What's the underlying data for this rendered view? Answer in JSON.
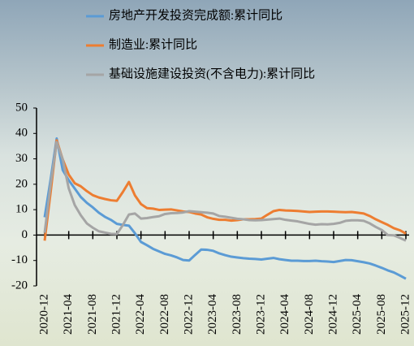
{
  "chart_data": {
    "type": "line",
    "categories": [
      "2020-12",
      null,
      null,
      null,
      "2021-04",
      null,
      null,
      null,
      "2021-08",
      null,
      null,
      null,
      "2021-12",
      null,
      null,
      null,
      "2022-04",
      null,
      null,
      null,
      "2022-08",
      null,
      null,
      null,
      "2022-12",
      null,
      null,
      null,
      "2023-04",
      null,
      null,
      null,
      "2023-08",
      null,
      null,
      null,
      "2023-12",
      null,
      null,
      null,
      "2024-04",
      null,
      null,
      null,
      "2024-08",
      null,
      null,
      null,
      "2024-12",
      null,
      null,
      null,
      "2025-04",
      null,
      null,
      null,
      "2025-08",
      null,
      null,
      null,
      "2025-12"
    ],
    "series": [
      {
        "name": "房地产开发投资完成额:累计同比",
        "color": "#5b9bd5",
        "values": [
          7,
          22,
          38,
          25.6,
          21.6,
          18.3,
          15,
          12.7,
          10.9,
          8.8,
          7.2,
          6,
          4.4,
          4,
          3.7,
          0.7,
          -2.7,
          -4,
          -5.4,
          -6.4,
          -7.4,
          -8,
          -8.8,
          -9.8,
          -10,
          -7.8,
          -5.7,
          -5.8,
          -6.2,
          -7.2,
          -7.9,
          -8.5,
          -8.8,
          -9.1,
          -9.3,
          -9.4,
          -9.6,
          -9.3,
          -9,
          -9.5,
          -9.8,
          -10.1,
          -10.1,
          -10.2,
          -10.2,
          -10.1,
          -10.3,
          -10.4,
          -10.6,
          -10.2,
          -9.8,
          -9.9,
          -10.3,
          -10.7,
          -11.2,
          -12,
          -12.9,
          -13.9,
          -14.7,
          -15.9,
          -17.2
        ]
      },
      {
        "name": "制造业:累计同比",
        "color": "#ed7d31",
        "values": [
          -2.2,
          17,
          37.3,
          29.8,
          23.8,
          20.4,
          19.2,
          17.3,
          15.7,
          14.8,
          14.2,
          13.7,
          13.5,
          17,
          20.9,
          15.6,
          12.2,
          10.6,
          10.4,
          9.9,
          10,
          10.1,
          9.7,
          9.3,
          9.1,
          8.5,
          8.1,
          7,
          6.4,
          6,
          6,
          5.7,
          5.9,
          6.2,
          6.2,
          6.3,
          6.5,
          8,
          9.4,
          9.9,
          9.7,
          9.6,
          9.5,
          9.3,
          9.1,
          9.2,
          9.3,
          9.3,
          9.2,
          9.1,
          9,
          9.1,
          8.8,
          8.5,
          7.5,
          6.2,
          5.1,
          4,
          2.7,
          1.9,
          0.6
        ]
      },
      {
        "name": "基础设施建设投资(不含电力):累计同比",
        "color": "#a5a5a5",
        "values": [
          0.9,
          20,
          36.6,
          29.7,
          18.4,
          11.8,
          7.8,
          4.6,
          2.9,
          1.5,
          1,
          0.5,
          0.4,
          4,
          8.1,
          8.5,
          6.5,
          6.7,
          7.1,
          7.4,
          8.3,
          8.6,
          8.7,
          8.9,
          9.4,
          9.2,
          9,
          8.8,
          8.5,
          7.5,
          7.2,
          6.8,
          6.4,
          6.2,
          5.9,
          5.8,
          5.9,
          6.1,
          6.3,
          6.5,
          6,
          5.7,
          5.4,
          4.9,
          4.4,
          4.1,
          4.3,
          4.2,
          4.4,
          4.8,
          5.6,
          5.8,
          5.8,
          5.6,
          4.6,
          3.2,
          2,
          0,
          -0.1,
          -1.1,
          -2.2
        ]
      }
    ],
    "ylim": [
      -20,
      50
    ],
    "yticks": [
      -20,
      -10,
      0,
      10,
      20,
      30,
      40,
      50
    ],
    "grid": false,
    "legend": "top"
  }
}
